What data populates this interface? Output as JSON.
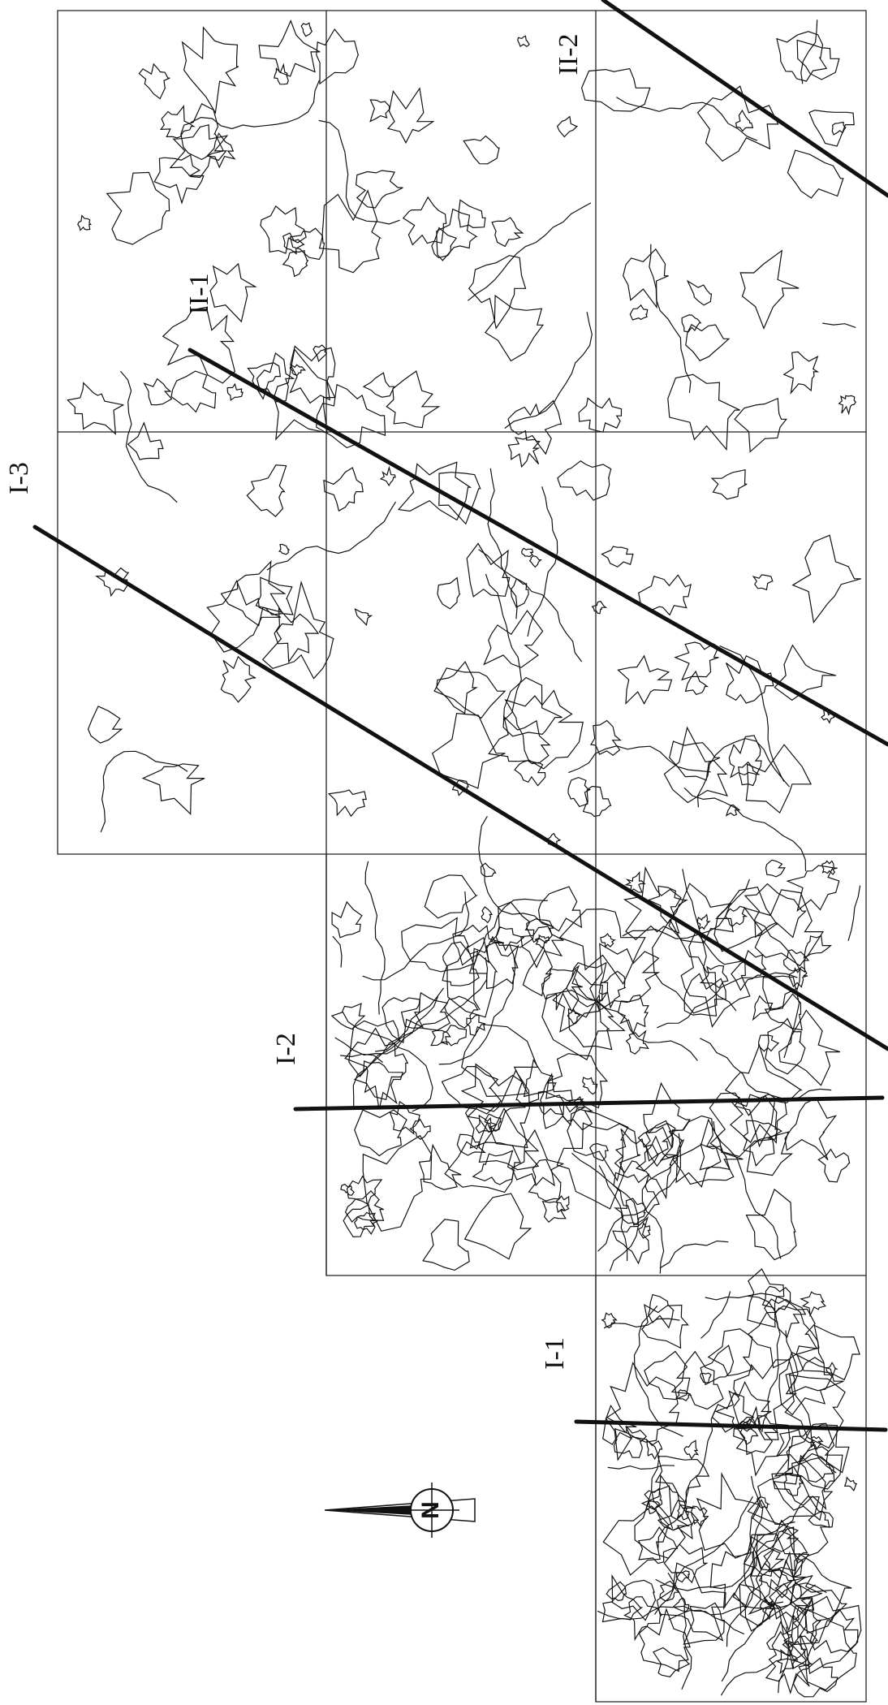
{
  "map": {
    "profile_labels": [
      "I-3",
      "II-1",
      "II-2",
      "I-2",
      "I-1"
    ],
    "north_label": "N"
  }
}
